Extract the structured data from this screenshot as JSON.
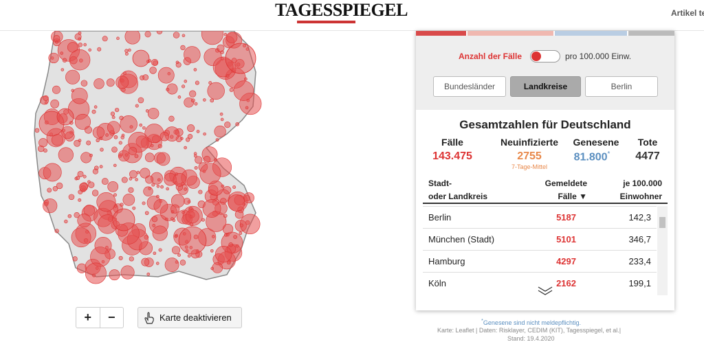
{
  "header": {
    "logo": "TAGESSPIEGEL",
    "nav": "Artikel te"
  },
  "panel": {
    "toggle_left": "Anzahl der Fälle",
    "toggle_right": "pro 100.000 Einw.",
    "buttons": [
      "Bundesländer",
      "Landkreise",
      "Berlin"
    ],
    "title": "Gesamtzahlen für Deutschland",
    "stats": [
      {
        "label": "Fälle",
        "value": "143.475"
      },
      {
        "label": "Neuinfizierte",
        "value": "2755",
        "note": "7-Tage-Mittel"
      },
      {
        "label": "Genesene",
        "value": "81.800",
        "mark": "*"
      },
      {
        "label": "Tote",
        "value": "4477"
      }
    ],
    "table": {
      "headers": [
        [
          "Stadt-",
          "oder Landkreis"
        ],
        [
          "Gemeldete",
          "Fälle ▼"
        ],
        [
          "je 100.000",
          "Einwohner"
        ]
      ],
      "rows": [
        [
          "Berlin",
          "5187",
          "142,3"
        ],
        [
          "München (Stadt)",
          "5101",
          "346,7"
        ],
        [
          "Hamburg",
          "4297",
          "233,4"
        ],
        [
          "Köln",
          "2162",
          "199,1"
        ]
      ]
    }
  },
  "map_controls": {
    "zoom_in": "+",
    "zoom_out": "−",
    "deactivate": "Karte deaktivieren"
  },
  "footer": {
    "mark": "*",
    "note": "Genesene sind nicht meldepflichtig.",
    "source": "Karte: Leaflet | Daten: Risklayer, CEDIM (KIT), Tagesspiegel, et al.|",
    "date": "Stand: 19.4.2020"
  }
}
